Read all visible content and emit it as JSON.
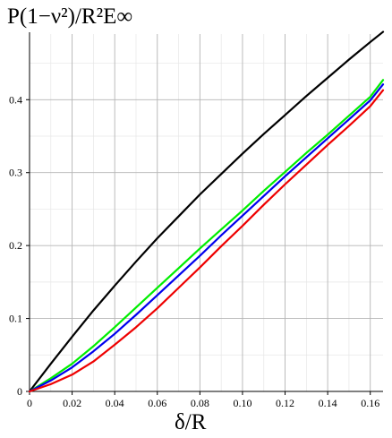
{
  "chart_data": {
    "type": "line",
    "title": "",
    "xlabel": "δ/R",
    "ylabel": "P(1−ν²)/R²E∞",
    "xlim": [
      0,
      0.166
    ],
    "ylim": [
      0,
      0.49
    ],
    "grid": true,
    "x_ticks": [
      "0",
      "0.02",
      "0.04",
      "0.06",
      "0.08",
      "0.10",
      "0.12",
      "0.14",
      "0.16"
    ],
    "y_ticks": [
      "0",
      "0.1",
      "0.2",
      "0.3",
      "0.4"
    ],
    "x_tick_values": [
      0,
      0.02,
      0.04,
      0.06,
      0.08,
      0.1,
      0.12,
      0.14,
      0.16
    ],
    "y_tick_values": [
      0,
      0.1,
      0.2,
      0.3,
      0.4
    ],
    "series": [
      {
        "color": "#000000",
        "x": [
          0,
          0.01,
          0.02,
          0.03,
          0.04,
          0.05,
          0.06,
          0.07,
          0.08,
          0.09,
          0.1,
          0.11,
          0.12,
          0.13,
          0.14,
          0.15,
          0.16,
          0.166
        ],
        "y": [
          0,
          0.038,
          0.075,
          0.111,
          0.145,
          0.178,
          0.21,
          0.24,
          0.27,
          0.298,
          0.326,
          0.353,
          0.379,
          0.405,
          0.43,
          0.455,
          0.479,
          0.493
        ]
      },
      {
        "color": "#00ee00",
        "x": [
          0,
          0.01,
          0.02,
          0.03,
          0.04,
          0.05,
          0.06,
          0.07,
          0.08,
          0.09,
          0.1,
          0.11,
          0.12,
          0.13,
          0.14,
          0.15,
          0.16,
          0.166
        ],
        "y": [
          0,
          0.018,
          0.038,
          0.062,
          0.088,
          0.115,
          0.142,
          0.169,
          0.196,
          0.222,
          0.248,
          0.275,
          0.301,
          0.327,
          0.352,
          0.378,
          0.404,
          0.427
        ]
      },
      {
        "color": "#0000ee",
        "x": [
          0,
          0.01,
          0.02,
          0.03,
          0.04,
          0.05,
          0.06,
          0.07,
          0.08,
          0.09,
          0.1,
          0.11,
          0.12,
          0.13,
          0.14,
          0.15,
          0.16,
          0.166
        ],
        "y": [
          0,
          0.015,
          0.033,
          0.055,
          0.079,
          0.105,
          0.132,
          0.159,
          0.186,
          0.214,
          0.241,
          0.268,
          0.295,
          0.321,
          0.347,
          0.373,
          0.399,
          0.421
        ]
      },
      {
        "color": "#ee0000",
        "x": [
          0,
          0.01,
          0.02,
          0.03,
          0.04,
          0.05,
          0.06,
          0.07,
          0.08,
          0.09,
          0.1,
          0.11,
          0.12,
          0.13,
          0.14,
          0.15,
          0.16,
          0.166
        ],
        "y": [
          0,
          0.01,
          0.023,
          0.041,
          0.064,
          0.088,
          0.114,
          0.142,
          0.17,
          0.199,
          0.227,
          0.256,
          0.284,
          0.311,
          0.338,
          0.364,
          0.391,
          0.413
        ]
      }
    ]
  }
}
